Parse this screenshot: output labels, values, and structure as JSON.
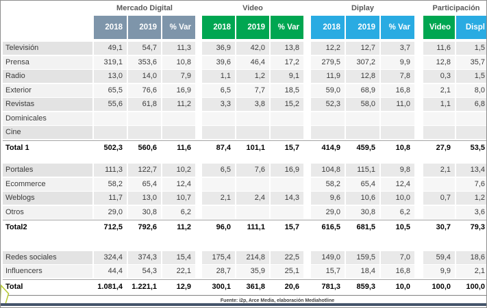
{
  "colors": {
    "mercado_header": "#7e95aa",
    "video_green": "#00a651",
    "display_blue": "#29abe2",
    "bottom_bar": "#44546a",
    "logo_stroke": "#b8cb35",
    "row_dark": "#e9e9e9",
    "row_light": "#f6f6f6"
  },
  "chart_data": {
    "type": "table",
    "title": "",
    "column_groups": [
      {
        "name": "Mercado Digital",
        "columns": [
          {
            "label": "2018",
            "color": "#7e95aa"
          },
          {
            "label": "2019",
            "color": "#7e95aa"
          },
          {
            "label": "% Var",
            "color": "#7e95aa"
          }
        ]
      },
      {
        "name": "Video",
        "columns": [
          {
            "label": "2018",
            "color": "#00a651"
          },
          {
            "label": "2019",
            "color": "#00a651"
          },
          {
            "label": "% Var",
            "color": "#00a651"
          }
        ]
      },
      {
        "name": "Diplay",
        "columns": [
          {
            "label": "2018",
            "color": "#29abe2"
          },
          {
            "label": "2019",
            "color": "#29abe2"
          },
          {
            "label": "% Var",
            "color": "#29abe2"
          }
        ]
      },
      {
        "name": "Participación",
        "columns": [
          {
            "label": "Video",
            "color": "#00a651"
          },
          {
            "label": "Displ",
            "color": "#29abe2"
          }
        ]
      }
    ],
    "row_blocks": [
      {
        "rows": [
          {
            "label": "Televisión",
            "type": "data",
            "values": [
              "49,1",
              "54,7",
              "11,3",
              "36,9",
              "42,0",
              "13,8",
              "12,2",
              "12,7",
              "3,7",
              "11,6",
              "1,5"
            ]
          },
          {
            "label": "Prensa",
            "type": "data",
            "values": [
              "319,1",
              "353,6",
              "10,8",
              "39,6",
              "46,4",
              "17,2",
              "279,5",
              "307,2",
              "9,9",
              "12,8",
              "35,7"
            ]
          },
          {
            "label": "Radio",
            "type": "data",
            "values": [
              "13,0",
              "14,0",
              "7,9",
              "1,1",
              "1,2",
              "9,1",
              "11,9",
              "12,8",
              "7,8",
              "0,3",
              "1,5"
            ]
          },
          {
            "label": "Exterior",
            "type": "data",
            "values": [
              "65,5",
              "76,6",
              "16,9",
              "6,5",
              "7,7",
              "18,5",
              "59,0",
              "68,9",
              "16,8",
              "2,1",
              "8,0"
            ]
          },
          {
            "label": "Revistas",
            "type": "data",
            "values": [
              "55,6",
              "61,8",
              "11,2",
              "3,3",
              "3,8",
              "15,2",
              "52,3",
              "58,0",
              "11,0",
              "1,1",
              "6,8"
            ]
          },
          {
            "label": "Dominicales",
            "type": "data",
            "values": [
              "",
              "",
              "",
              "",
              "",
              "",
              "",
              "",
              "",
              "",
              ""
            ]
          },
          {
            "label": "Cine",
            "type": "data",
            "values": [
              "",
              "",
              "",
              "",
              "",
              "",
              "",
              "",
              "",
              "",
              ""
            ]
          },
          {
            "label": "Total 1",
            "type": "total",
            "values": [
              "502,3",
              "560,6",
              "11,6",
              "87,4",
              "101,1",
              "15,7",
              "414,9",
              "459,5",
              "10,8",
              "27,9",
              "53,5"
            ]
          }
        ]
      },
      {
        "rows": [
          {
            "label": "Portales",
            "type": "data",
            "values": [
              "111,3",
              "122,7",
              "10,2",
              "6,5",
              "7,6",
              "16,9",
              "104,8",
              "115,1",
              "9,8",
              "2,1",
              "13,4"
            ]
          },
          {
            "label": "Ecommerce",
            "type": "data",
            "values": [
              "58,2",
              "65,4",
              "12,4",
              "",
              "",
              "",
              "58,2",
              "65,4",
              "12,4",
              "",
              "7,6"
            ]
          },
          {
            "label": "Weblogs",
            "type": "data",
            "values": [
              "11,7",
              "13,0",
              "10,7",
              "2,1",
              "2,4",
              "14,3",
              "9,6",
              "10,6",
              "10,0",
              "0,7",
              "1,2"
            ]
          },
          {
            "label": "Otros",
            "type": "data",
            "values": [
              "29,0",
              "30,8",
              "6,2",
              "",
              "",
              "",
              "29,0",
              "30,8",
              "6,2",
              "",
              "3,6"
            ]
          },
          {
            "label": "Total2",
            "type": "total",
            "values": [
              "712,5",
              "792,6",
              "11,2",
              "96,0",
              "111,1",
              "15,7",
              "616,5",
              "681,5",
              "10,5",
              "30,7",
              "79,3"
            ]
          }
        ]
      },
      {
        "rows": [
          {
            "label": "Redes sociales",
            "type": "data",
            "values": [
              "324,4",
              "374,3",
              "15,4",
              "175,4",
              "214,8",
              "22,5",
              "149,0",
              "159,5",
              "7,0",
              "59,4",
              "18,6"
            ]
          },
          {
            "label": "Influencers",
            "type": "data",
            "values": [
              "44,4",
              "54,3",
              "22,1",
              "28,7",
              "35,9",
              "25,1",
              "15,7",
              "18,4",
              "16,8",
              "9,9",
              "2,1"
            ]
          },
          {
            "label": "Total",
            "type": "total",
            "values": [
              "1.081,4",
              "1.221,1",
              "12,9",
              "300,1",
              "361,8",
              "20,6",
              "781,3",
              "859,3",
              "10,0",
              "100,0",
              "100,0"
            ]
          }
        ]
      }
    ]
  },
  "footer": {
    "source": "Fuente: i2p, Arce Media, elaboración Mediahotline"
  }
}
